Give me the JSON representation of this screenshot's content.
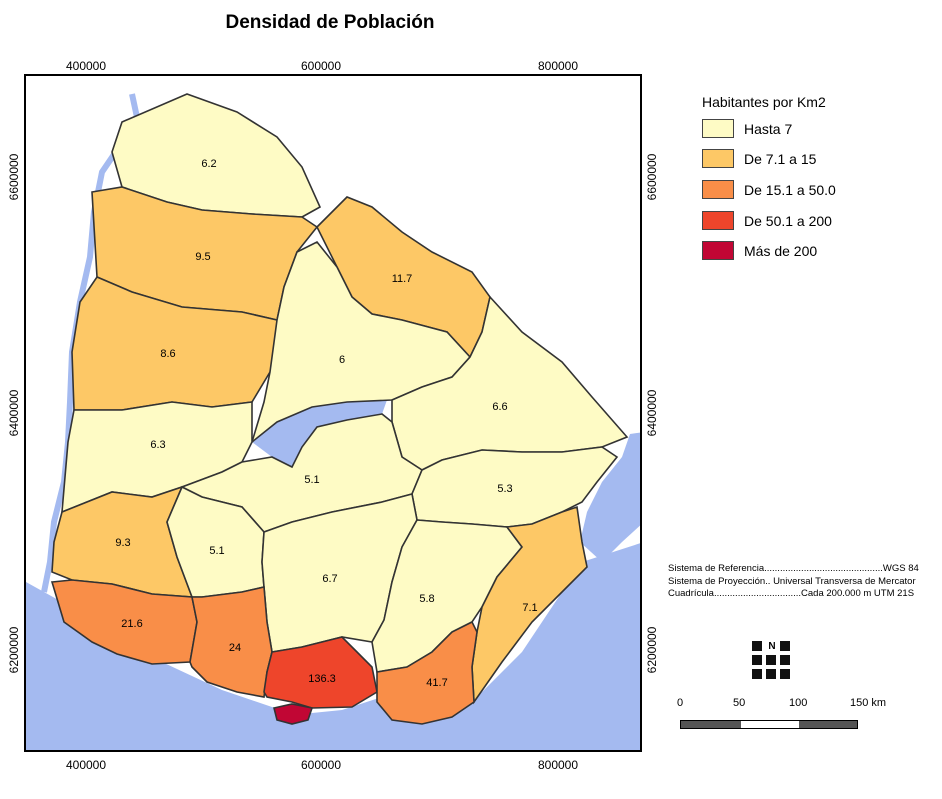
{
  "title": "Densidad de Población",
  "axes": {
    "top_ticks": [
      "400000",
      "600000",
      "800000"
    ],
    "bottom_ticks": [
      "400000",
      "600000",
      "800000"
    ],
    "left_ticks": [
      "6600000",
      "6400000",
      "6200000"
    ],
    "right_ticks": [
      "6600000",
      "6400000",
      "6200000"
    ]
  },
  "legend": {
    "title": "Habitantes por Km2",
    "items": [
      {
        "label": "Hasta 7",
        "color": "#fefbc5"
      },
      {
        "label": "De 7.1 a 15",
        "color": "#fdc866"
      },
      {
        "label": "De 15.1 a 50.0",
        "color": "#f98e48"
      },
      {
        "label": "De 50.1 a 200",
        "color": "#ee452b"
      },
      {
        "label": "Más de 200",
        "color": "#c10634"
      }
    ]
  },
  "regions": [
    {
      "label": "6.2",
      "class": "Hasta 7"
    },
    {
      "label": "9.5",
      "class": "De 7.1 a 15"
    },
    {
      "label": "11.7",
      "class": "De 7.1 a 15"
    },
    {
      "label": "8.6",
      "class": "De 7.1 a 15"
    },
    {
      "label": "6",
      "class": "Hasta 7"
    },
    {
      "label": "6.6",
      "class": "Hasta 7"
    },
    {
      "label": "6.3",
      "class": "Hasta 7"
    },
    {
      "label": "5.1",
      "class": "Hasta 7"
    },
    {
      "label": "5.3",
      "class": "Hasta 7"
    },
    {
      "label": "9.3",
      "class": "De 7.1 a 15"
    },
    {
      "label": "5.1",
      "class": "Hasta 7"
    },
    {
      "label": "6.7",
      "class": "Hasta 7"
    },
    {
      "label": "5.8",
      "class": "Hasta 7"
    },
    {
      "label": "7.1",
      "class": "De 7.1 a 15"
    },
    {
      "label": "21.6",
      "class": "De 15.1 a 50.0"
    },
    {
      "label": "24",
      "class": "De 15.1 a 50.0"
    },
    {
      "label": "136.3",
      "class": "De 50.1 a 200"
    },
    {
      "label": "41.7",
      "class": "De 15.1 a 50.0"
    },
    {
      "label": "Más de 200",
      "class": "Más de 200"
    }
  ],
  "reference": {
    "line1": "Sistema de Referencia.............................................WGS 84",
    "line2": "Sistema de Proyección.. Universal Transversa de Mercator",
    "line3": "Cuadrícula.................................Cada 200.000 m UTM 21S"
  },
  "north_label": "N",
  "scale": {
    "labels": [
      "0",
      "50",
      "100",
      "150 km"
    ]
  },
  "colors": {
    "water": "#a4baf0",
    "border": "#333333"
  }
}
